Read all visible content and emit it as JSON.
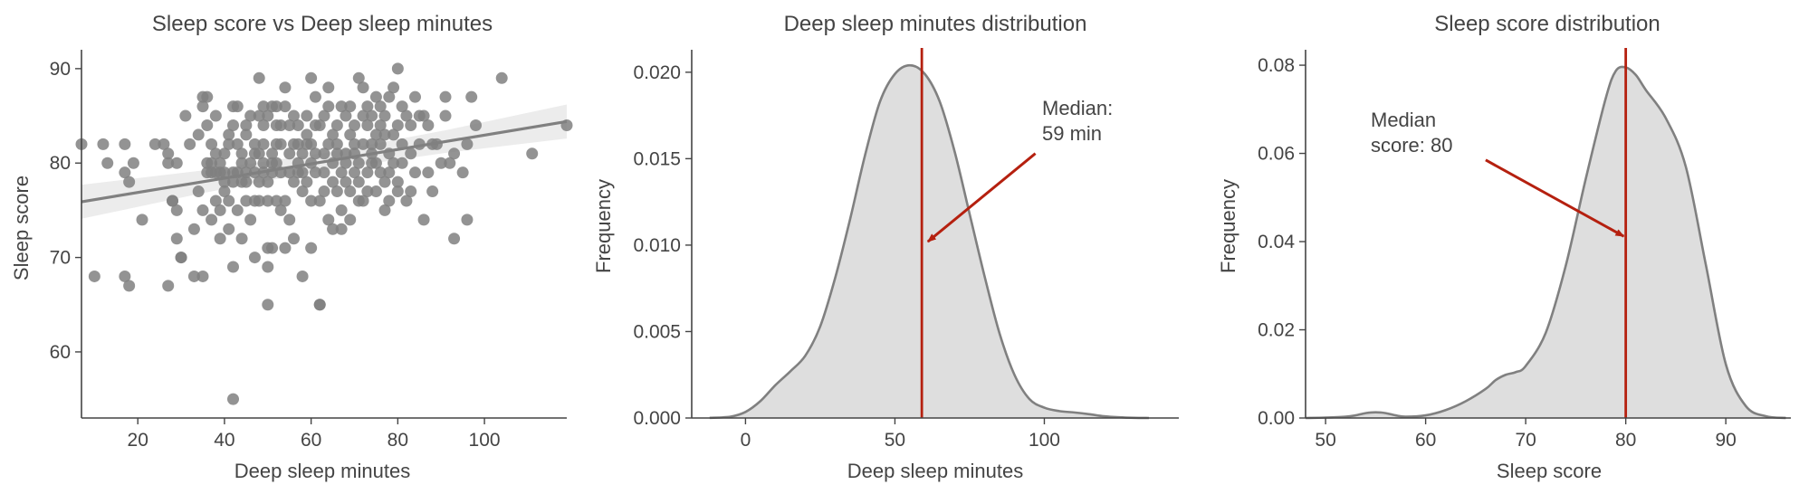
{
  "chart_data": [
    {
      "type": "scatter",
      "title": "Sleep score vs Deep sleep minutes",
      "xlabel": "Deep sleep minutes",
      "ylabel": "Sleep score",
      "xlim": [
        7,
        119
      ],
      "ylim": [
        53,
        92
      ],
      "xticks": [
        20,
        40,
        60,
        80,
        100
      ],
      "xtick_labels": [
        "20",
        "40",
        "60",
        "80",
        "100"
      ],
      "yticks": [
        60,
        70,
        80,
        90
      ],
      "ytick_labels": [
        "60",
        "70",
        "80",
        "90"
      ],
      "point_color": "#808080",
      "regression": {
        "x": [
          7,
          119
        ],
        "y": [
          75.9,
          84.4
        ],
        "ci_band": [
          1.8,
          1.2,
          0.9,
          1.2,
          1.8
        ],
        "color": "#808080"
      },
      "points": [
        [
          7,
          82
        ],
        [
          10,
          68
        ],
        [
          12,
          82
        ],
        [
          13,
          80
        ],
        [
          17,
          82
        ],
        [
          17,
          79
        ],
        [
          17,
          68
        ],
        [
          18,
          67
        ],
        [
          18,
          78
        ],
        [
          19,
          80
        ],
        [
          21,
          74
        ],
        [
          24,
          82
        ],
        [
          26,
          82
        ],
        [
          27,
          81
        ],
        [
          27,
          80
        ],
        [
          27,
          67
        ],
        [
          28,
          76
        ],
        [
          28,
          76
        ],
        [
          29,
          75
        ],
        [
          29,
          72
        ],
        [
          29,
          80
        ],
        [
          30,
          70
        ],
        [
          30,
          70
        ],
        [
          31,
          85
        ],
        [
          32,
          82
        ],
        [
          33,
          73
        ],
        [
          33,
          68
        ],
        [
          34,
          77
        ],
        [
          34,
          83
        ],
        [
          35,
          87
        ],
        [
          35,
          75
        ],
        [
          35,
          68
        ],
        [
          35,
          86
        ],
        [
          36,
          79
        ],
        [
          36,
          80
        ],
        [
          36,
          87
        ],
        [
          36,
          84
        ],
        [
          37,
          80
        ],
        [
          37,
          82
        ],
        [
          37,
          74
        ],
        [
          37,
          79
        ],
        [
          38,
          79
        ],
        [
          38,
          81
        ],
        [
          38,
          76
        ],
        [
          38,
          85
        ],
        [
          39,
          79
        ],
        [
          39,
          80
        ],
        [
          39,
          72
        ],
        [
          39,
          75
        ],
        [
          40,
          78
        ],
        [
          40,
          81
        ],
        [
          40,
          79
        ],
        [
          40,
          77
        ],
        [
          41,
          83
        ],
        [
          41,
          76
        ],
        [
          41,
          82
        ],
        [
          41,
          73
        ],
        [
          42,
          86
        ],
        [
          42,
          84
        ],
        [
          42,
          78
        ],
        [
          42,
          69
        ],
        [
          42,
          55
        ],
        [
          42,
          79
        ],
        [
          43,
          79
        ],
        [
          43,
          82
        ],
        [
          43,
          86
        ],
        [
          43,
          75
        ],
        [
          44,
          78
        ],
        [
          44,
          81
        ],
        [
          44,
          72
        ],
        [
          44,
          80
        ],
        [
          45,
          83
        ],
        [
          45,
          84
        ],
        [
          45,
          76
        ],
        [
          45,
          79
        ],
        [
          45,
          78
        ],
        [
          46,
          74
        ],
        [
          46,
          80
        ],
        [
          46,
          85
        ],
        [
          47,
          76
        ],
        [
          47,
          81
        ],
        [
          47,
          82
        ],
        [
          47,
          79
        ],
        [
          47,
          70
        ],
        [
          48,
          76
        ],
        [
          48,
          81
        ],
        [
          48,
          78
        ],
        [
          48,
          85
        ],
        [
          48,
          89
        ],
        [
          49,
          80
        ],
        [
          49,
          86
        ],
        [
          49,
          79
        ],
        [
          49,
          84
        ],
        [
          49,
          82
        ],
        [
          50,
          71
        ],
        [
          50,
          65
        ],
        [
          50,
          69
        ],
        [
          50,
          76
        ],
        [
          50,
          78
        ],
        [
          50,
          85
        ],
        [
          51,
          86
        ],
        [
          51,
          80
        ],
        [
          51,
          79
        ],
        [
          51,
          71
        ],
        [
          51,
          81
        ],
        [
          52,
          86
        ],
        [
          52,
          76
        ],
        [
          52,
          82
        ],
        [
          52,
          84
        ],
        [
          52,
          80
        ],
        [
          53,
          79
        ],
        [
          53,
          82
        ],
        [
          53,
          75
        ],
        [
          53,
          84
        ],
        [
          54,
          76
        ],
        [
          54,
          86
        ],
        [
          54,
          88
        ],
        [
          54,
          71
        ],
        [
          55,
          81
        ],
        [
          55,
          84
        ],
        [
          55,
          79
        ],
        [
          55,
          74
        ],
        [
          56,
          72
        ],
        [
          56,
          82
        ],
        [
          56,
          78
        ],
        [
          56,
          85
        ],
        [
          57,
          82
        ],
        [
          57,
          80
        ],
        [
          57,
          79
        ],
        [
          57,
          84
        ],
        [
          58,
          79
        ],
        [
          58,
          77
        ],
        [
          58,
          81
        ],
        [
          58,
          68
        ],
        [
          59,
          85
        ],
        [
          59,
          82
        ],
        [
          59,
          83
        ],
        [
          59,
          78
        ],
        [
          60,
          89
        ],
        [
          60,
          82
        ],
        [
          60,
          80
        ],
        [
          60,
          76
        ],
        [
          60,
          71
        ],
        [
          61,
          87
        ],
        [
          61,
          79
        ],
        [
          61,
          84
        ],
        [
          61,
          81
        ],
        [
          62,
          65
        ],
        [
          62,
          65
        ],
        [
          62,
          76
        ],
        [
          62,
          84
        ],
        [
          63,
          85
        ],
        [
          63,
          79
        ],
        [
          63,
          77
        ],
        [
          63,
          81
        ],
        [
          64,
          86
        ],
        [
          64,
          82
        ],
        [
          64,
          74
        ],
        [
          64,
          88
        ],
        [
          65,
          80
        ],
        [
          65,
          78
        ],
        [
          65,
          83
        ],
        [
          65,
          73
        ],
        [
          66,
          84
        ],
        [
          66,
          77
        ],
        [
          66,
          81
        ],
        [
          66,
          82
        ],
        [
          67,
          79
        ],
        [
          67,
          86
        ],
        [
          67,
          73
        ],
        [
          67,
          75
        ],
        [
          68,
          85
        ],
        [
          68,
          78
        ],
        [
          68,
          81
        ],
        [
          68,
          80
        ],
        [
          69,
          83
        ],
        [
          69,
          77
        ],
        [
          69,
          74
        ],
        [
          69,
          86
        ],
        [
          70,
          82
        ],
        [
          70,
          79
        ],
        [
          70,
          81
        ],
        [
          70,
          84
        ],
        [
          71,
          89
        ],
        [
          71,
          80
        ],
        [
          71,
          78
        ],
        [
          71,
          76
        ],
        [
          72,
          85
        ],
        [
          72,
          82
        ],
        [
          72,
          88
        ],
        [
          72,
          76
        ],
        [
          73,
          79
        ],
        [
          73,
          84
        ],
        [
          73,
          86
        ],
        [
          73,
          77
        ],
        [
          74,
          82
        ],
        [
          74,
          81
        ],
        [
          74,
          80
        ],
        [
          74,
          85
        ],
        [
          75,
          87
        ],
        [
          75,
          80
        ],
        [
          75,
          83
        ],
        [
          75,
          77
        ],
        [
          76,
          84
        ],
        [
          76,
          79
        ],
        [
          76,
          86
        ],
        [
          76,
          82
        ],
        [
          77,
          83
        ],
        [
          77,
          78
        ],
        [
          77,
          85
        ],
        [
          77,
          75
        ],
        [
          78,
          81
        ],
        [
          78,
          87
        ],
        [
          78,
          79
        ],
        [
          78,
          76
        ],
        [
          79,
          88
        ],
        [
          79,
          80
        ],
        [
          79,
          83
        ],
        [
          80,
          90
        ],
        [
          80,
          84
        ],
        [
          80,
          78
        ],
        [
          80,
          77
        ],
        [
          81,
          80
        ],
        [
          81,
          86
        ],
        [
          81,
          82
        ],
        [
          82,
          85
        ],
        [
          82,
          76
        ],
        [
          83,
          84
        ],
        [
          83,
          81
        ],
        [
          83,
          77
        ],
        [
          84,
          79
        ],
        [
          84,
          87
        ],
        [
          85,
          85
        ],
        [
          85,
          82
        ],
        [
          86,
          85
        ],
        [
          86,
          74
        ],
        [
          87,
          79
        ],
        [
          87,
          84
        ],
        [
          88,
          82
        ],
        [
          88,
          77
        ],
        [
          89,
          82
        ],
        [
          90,
          80
        ],
        [
          91,
          87
        ],
        [
          91,
          85
        ],
        [
          92,
          80
        ],
        [
          93,
          81
        ],
        [
          93,
          72
        ],
        [
          95,
          79
        ],
        [
          96,
          74
        ],
        [
          96,
          82
        ],
        [
          97,
          87
        ],
        [
          98,
          84
        ],
        [
          104,
          89
        ],
        [
          111,
          81
        ],
        [
          119,
          84
        ]
      ]
    },
    {
      "type": "area",
      "title": "Deep sleep minutes distribution",
      "xlabel": "Deep sleep minutes",
      "ylabel": "Frequency",
      "xlim": [
        -18,
        145
      ],
      "ylim": [
        0,
        0.0213
      ],
      "xticks": [
        0,
        50,
        100
      ],
      "xtick_labels": [
        "0",
        "50",
        "100"
      ],
      "yticks": [
        0,
        0.005,
        0.01,
        0.015,
        0.02
      ],
      "ytick_labels": [
        "0.000",
        "0.005",
        "0.010",
        "0.015",
        "0.020"
      ],
      "fill_color": "#dedede",
      "line_color": "#808080",
      "x": [
        -12,
        -5,
        0,
        5,
        10,
        15,
        20,
        25,
        30,
        35,
        40,
        45,
        50,
        55,
        60,
        65,
        70,
        75,
        80,
        85,
        90,
        95,
        100,
        105,
        110,
        115,
        120,
        125,
        130,
        135
      ],
      "y": [
        1e-05,
        8e-05,
        0.00035,
        0.00098,
        0.0019,
        0.0027,
        0.0036,
        0.0053,
        0.0081,
        0.0115,
        0.0152,
        0.0183,
        0.0199,
        0.0204,
        0.0199,
        0.0183,
        0.0154,
        0.0118,
        0.0082,
        0.0049,
        0.0025,
        0.0011,
        0.0006,
        0.0004,
        0.00032,
        0.00022,
        0.0001,
        4e-05,
        1e-05,
        0
      ],
      "median_line": {
        "value": 59,
        "color": "#b5200f"
      },
      "annotation": {
        "lines": [
          "Median:",
          "59 min"
        ],
        "arrow_from": [
          97,
          0.0153
        ],
        "arrow_to": [
          61,
          0.0102
        ],
        "color": "#b5200f"
      }
    },
    {
      "type": "area",
      "title": "Sleep score distribution",
      "xlabel": "Sleep score",
      "ylabel": "Frequency",
      "xlim": [
        48,
        96.5
      ],
      "ylim": [
        0,
        0.0835
      ],
      "xticks": [
        50,
        60,
        70,
        80,
        90
      ],
      "xtick_labels": [
        "50",
        "60",
        "70",
        "80",
        "90"
      ],
      "yticks": [
        0,
        0.02,
        0.04,
        0.06,
        0.08
      ],
      "ytick_labels": [
        "0.00",
        "0.02",
        "0.04",
        "0.06",
        "0.08"
      ],
      "fill_color": "#dedede",
      "line_color": "#808080",
      "x": [
        48,
        50,
        52,
        53,
        54,
        55,
        56,
        57,
        58,
        60,
        62,
        64,
        66,
        67,
        68,
        69,
        70,
        72,
        74,
        76,
        78,
        79,
        80,
        81,
        82,
        84,
        86,
        88,
        90,
        92,
        94,
        96
      ],
      "y": [
        0,
        0.0001,
        0.0003,
        0.0006,
        0.0011,
        0.0013,
        0.0011,
        0.0006,
        0.0003,
        0.0006,
        0.0018,
        0.0038,
        0.0066,
        0.0086,
        0.0098,
        0.0104,
        0.0118,
        0.0193,
        0.0345,
        0.0542,
        0.0725,
        0.0787,
        0.0795,
        0.0778,
        0.0744,
        0.068,
        0.057,
        0.0348,
        0.0122,
        0.0027,
        0.0004,
        0
      ],
      "median_line": {
        "value": 80,
        "color": "#b5200f"
      },
      "annotation": {
        "lines": [
          "Median",
          "score: 80"
        ],
        "arrow_from": [
          66,
          0.0585
        ],
        "arrow_to": [
          79.8,
          0.0412
        ],
        "color": "#b5200f"
      }
    }
  ]
}
